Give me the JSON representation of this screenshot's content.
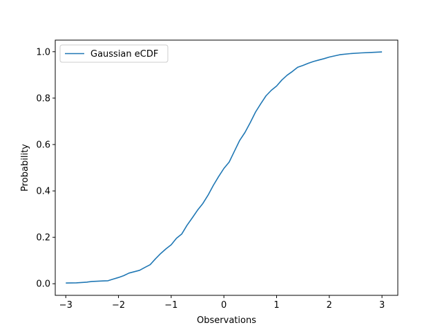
{
  "chart_data": {
    "type": "line",
    "title": "",
    "xlabel": "Observations",
    "ylabel": "Probability",
    "xlim": [
      -3.2,
      3.3
    ],
    "ylim": [
      -0.05,
      1.05
    ],
    "x_ticks": [
      -3,
      -2,
      -1,
      0,
      1,
      2,
      3
    ],
    "x_tick_labels": [
      "−3",
      "−2",
      "−1",
      "0",
      "1",
      "2",
      "3"
    ],
    "y_ticks": [
      0.0,
      0.2,
      0.4,
      0.6,
      0.8,
      1.0
    ],
    "y_tick_labels": [
      "0.0",
      "0.2",
      "0.4",
      "0.6",
      "0.8",
      "1.0"
    ],
    "grid": false,
    "legend_position": "top-left",
    "series": [
      {
        "name": "Gaussian eCDF",
        "color": "#1f77b4",
        "x": [
          -3.0,
          -2.8,
          -2.6,
          -2.5,
          -2.3,
          -2.2,
          -2.1,
          -2.0,
          -1.9,
          -1.8,
          -1.7,
          -1.6,
          -1.5,
          -1.4,
          -1.3,
          -1.2,
          -1.1,
          -1.0,
          -0.9,
          -0.8,
          -0.7,
          -0.6,
          -0.5,
          -0.4,
          -0.3,
          -0.2,
          -0.1,
          0.0,
          0.1,
          0.2,
          0.3,
          0.4,
          0.5,
          0.6,
          0.7,
          0.8,
          0.9,
          1.0,
          1.1,
          1.2,
          1.3,
          1.4,
          1.5,
          1.6,
          1.7,
          1.8,
          1.9,
          2.0,
          2.2,
          2.4,
          2.6,
          2.8,
          3.0
        ],
        "y": [
          0.003,
          0.004,
          0.007,
          0.01,
          0.012,
          0.013,
          0.02,
          0.027,
          0.035,
          0.046,
          0.052,
          0.058,
          0.07,
          0.082,
          0.107,
          0.13,
          0.15,
          0.168,
          0.196,
          0.214,
          0.252,
          0.284,
          0.317,
          0.346,
          0.382,
          0.424,
          0.462,
          0.497,
          0.524,
          0.571,
          0.618,
          0.652,
          0.694,
          0.74,
          0.776,
          0.81,
          0.834,
          0.852,
          0.878,
          0.899,
          0.915,
          0.933,
          0.941,
          0.95,
          0.958,
          0.964,
          0.97,
          0.977,
          0.987,
          0.992,
          0.995,
          0.997,
          0.999
        ]
      }
    ]
  }
}
